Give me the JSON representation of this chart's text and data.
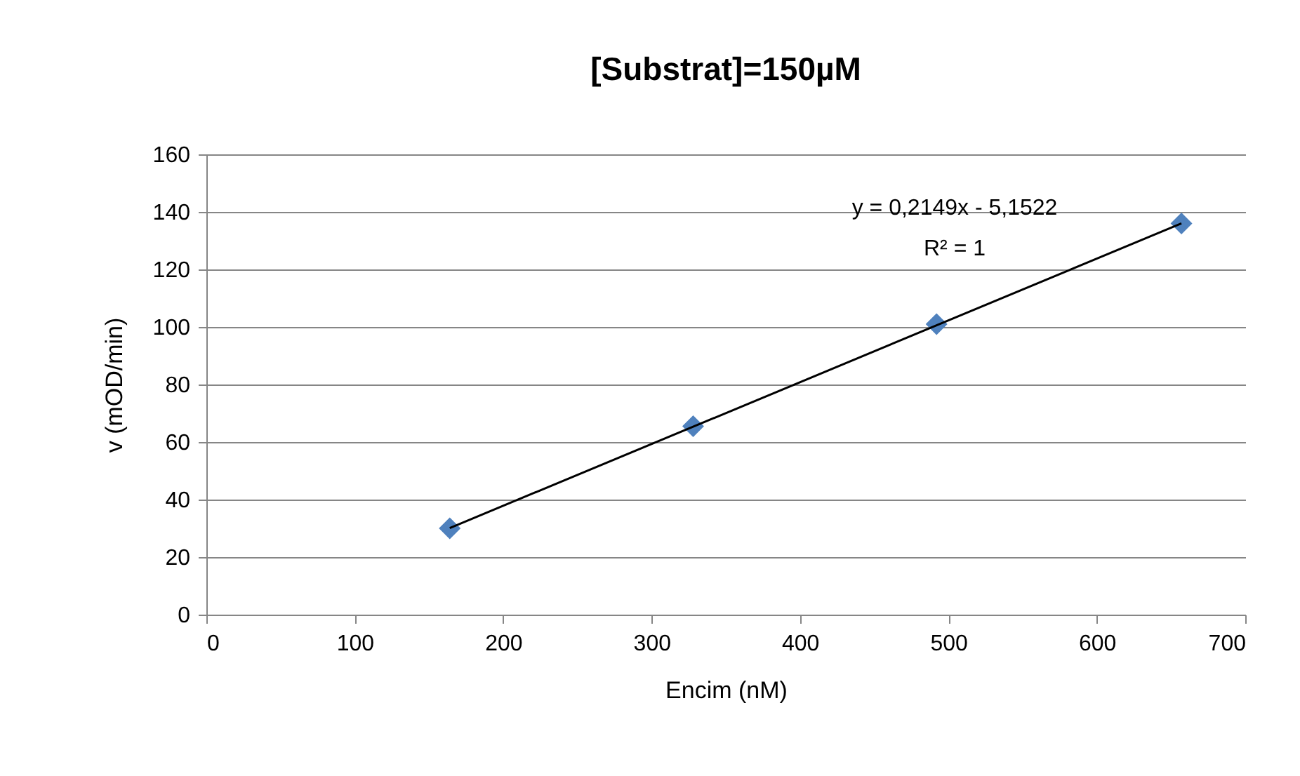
{
  "chart_data": {
    "type": "scatter",
    "title": "[Substrat]=150µM",
    "xlabel": "Encim (nM)",
    "ylabel": "v (mOD/min)",
    "xlim": [
      0,
      700
    ],
    "xticks": [
      0,
      100,
      200,
      300,
      400,
      500,
      600,
      700
    ],
    "ylim": [
      0,
      160
    ],
    "yticks": [
      0,
      20,
      40,
      60,
      80,
      100,
      120,
      140,
      160
    ],
    "grid": "y",
    "series": [
      {
        "color": "#4f81bd",
        "marker": "diamond",
        "x": [
          164,
          328,
          492,
          657
        ],
        "values": [
          30,
          65.5,
          101,
          136
        ]
      },
      {
        "type": "line",
        "color": "#000000",
        "marker": "none",
        "x": [
          164,
          657
        ],
        "values": [
          30.1,
          136.0
        ]
      }
    ],
    "annotations": [
      "y = 0,2149x - 5,1522",
      "R² = 1"
    ]
  }
}
